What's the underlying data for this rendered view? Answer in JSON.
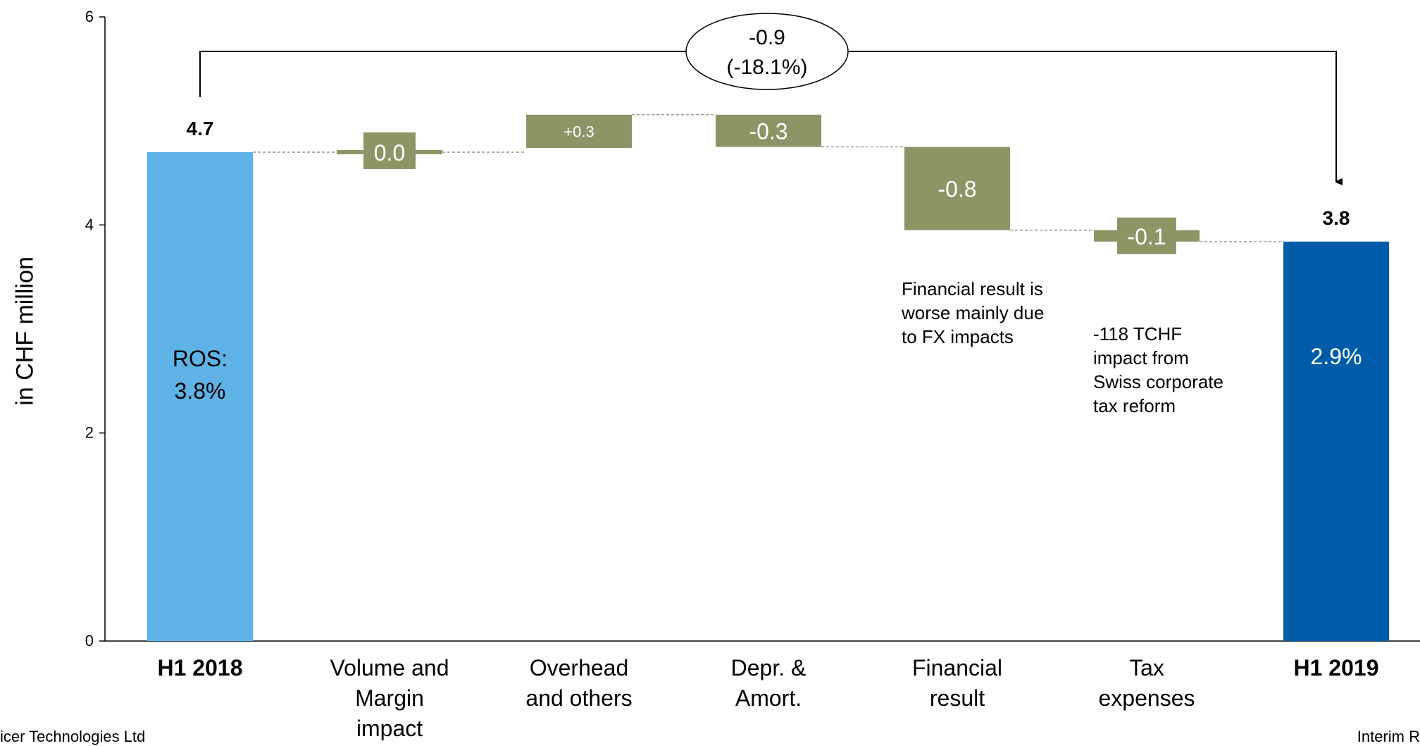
{
  "chart_data": {
    "type": "waterfall",
    "ylabel": "in CHF million",
    "ylim": [
      0,
      6
    ],
    "yticks": [
      "0",
      "2",
      "4",
      "6"
    ],
    "categories": [
      "H1 2018",
      "Volume and\nMargin\nimpact",
      "Overhead\nand others",
      "Depr. &\nAmort.",
      "Financial\nresult",
      "Tax\nexpenses",
      "H1 2019"
    ],
    "bars": [
      {
        "kind": "total",
        "start": 0,
        "end": 4.7,
        "label": "4.7",
        "inner_label": "ROS:\n3.8%",
        "color": "#5fb2e6"
      },
      {
        "kind": "delta",
        "start": 4.7,
        "end": 4.7,
        "label": "0.0",
        "color": "#8f9467"
      },
      {
        "kind": "delta",
        "start": 4.74,
        "end": 5.06,
        "label": "+0.3",
        "color": "#8f9467"
      },
      {
        "kind": "delta",
        "start": 5.06,
        "end": 4.75,
        "label": "-0.3",
        "color": "#8f9467"
      },
      {
        "kind": "delta",
        "start": 4.75,
        "end": 3.95,
        "label": "-0.8",
        "color": "#8f9467"
      },
      {
        "kind": "delta",
        "start": 3.95,
        "end": 3.84,
        "label": "-0.1",
        "color": "#8f9467"
      },
      {
        "kind": "total",
        "start": 0,
        "end": 3.84,
        "label": "3.8",
        "inner_label": "2.9%",
        "color": "#005ca8"
      }
    ],
    "change": {
      "value": "-0.9",
      "pct": "(-18.1%)"
    }
  },
  "notes": {
    "financial": "Financial result is\nworse mainly due\nto FX impacts",
    "tax": "-118 TCHF\nimpact from\nSwiss corporate\ntax reform"
  },
  "footer": {
    "left": "icer Technologies Ltd",
    "right": "Interim R"
  }
}
